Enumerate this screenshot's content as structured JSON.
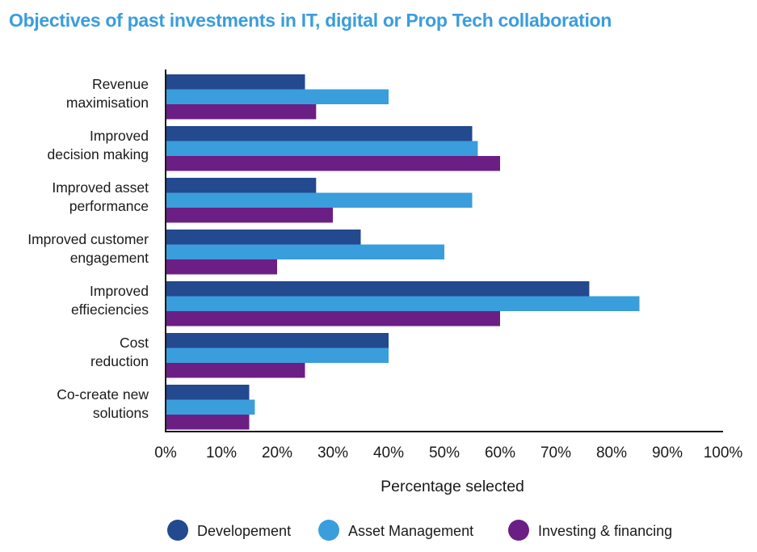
{
  "chart_data": {
    "type": "bar",
    "orientation": "horizontal",
    "title": "Objectives of past investments in IT, digital or Prop Tech collaboration",
    "xlabel": "Percentage selected",
    "ylabel": "",
    "xlim": [
      0,
      100
    ],
    "x_ticks": [
      "0%",
      "10%",
      "20%",
      "30%",
      "40%",
      "50%",
      "60%",
      "70%",
      "80%",
      "90%",
      "100%"
    ],
    "grid": false,
    "legend_position": "bottom",
    "categories": [
      [
        "Revenue",
        "maximisation"
      ],
      [
        "Improved",
        "decision making"
      ],
      [
        "Improved asset",
        "performance"
      ],
      [
        "Improved customer",
        "engagement"
      ],
      [
        "Improved",
        "effieciencies"
      ],
      [
        "Cost",
        "reduction"
      ],
      [
        "Co-create new",
        "solutions"
      ]
    ],
    "series": [
      {
        "name": "Developement",
        "color": "#23498f",
        "values": [
          25,
          55,
          27,
          35,
          76,
          40,
          15
        ]
      },
      {
        "name": "Asset Management",
        "color": "#3a9ddc",
        "values": [
          40,
          56,
          55,
          50,
          85,
          40,
          16
        ]
      },
      {
        "name": "Investing & financing",
        "color": "#6b1f85",
        "values": [
          27,
          60,
          30,
          20,
          60,
          25,
          15
        ]
      }
    ]
  },
  "colors": {
    "title": "#3a9ddc",
    "axis": "#1a1a1a"
  }
}
